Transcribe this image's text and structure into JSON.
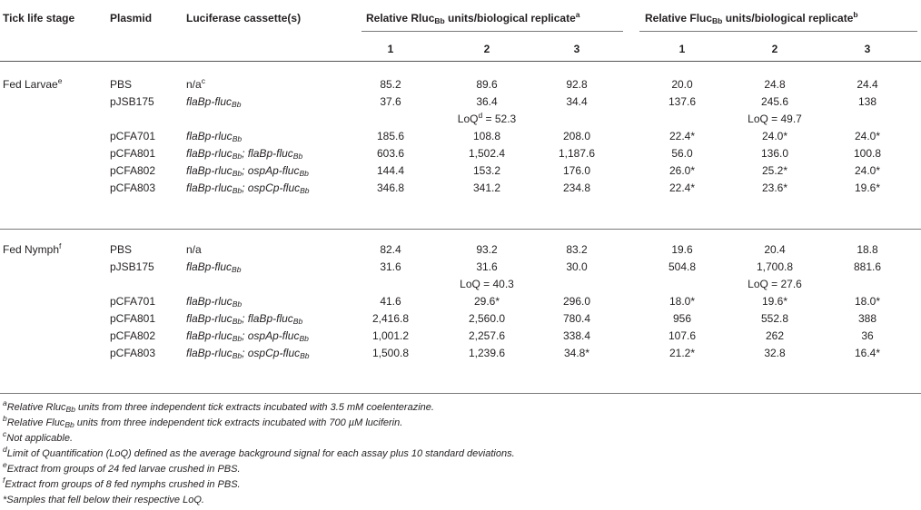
{
  "headers": {
    "stage": "Tick life stage",
    "plasmid": "Plasmid",
    "cassette": "Luciferase cassette(s)",
    "rluc_pre": "Relative Rluc",
    "rluc_sub": "Bb",
    "rluc_post": " units/biological replicate",
    "rluc_sup": "a",
    "fluc_pre": "Relative Fluc",
    "fluc_sub": "Bb",
    "fluc_post": " units/biological replicate",
    "fluc_sup": "b",
    "rep1": "1",
    "rep2": "2",
    "rep3": "3"
  },
  "groups": [
    {
      "stage": "Fed Larvae",
      "stage_sup": "e",
      "rows": [
        {
          "plasmid": "PBS",
          "cassette": "n/a",
          "cassette_sup": "c",
          "r": [
            "85.2",
            "89.6",
            "92.8"
          ],
          "f": [
            "20.0",
            "24.8",
            "24.4"
          ]
        },
        {
          "plasmid": "pJSB175",
          "cassette": "flaBp-flucBb",
          "r": [
            "37.6",
            "36.4",
            "34.4"
          ],
          "f": [
            "137.6",
            "245.6",
            "138"
          ]
        },
        {
          "loq_r": "LoQ",
          "loq_r_sup": "d",
          "loq_r_val": " = 52.3",
          "loq_f": "LoQ = 49.7"
        },
        {
          "plasmid": "pCFA701",
          "cassette": "flaBp-rlucBb",
          "r": [
            "185.6",
            "108.8",
            "208.0"
          ],
          "f": [
            "22.4*",
            "24.0*",
            "24.0*"
          ]
        },
        {
          "plasmid": "pCFA801",
          "cassette": "flaBp-rlucBb; flaBp-flucBb",
          "r": [
            "603.6",
            "1,502.4",
            "1,187.6"
          ],
          "f": [
            "56.0",
            "136.0",
            "100.8"
          ]
        },
        {
          "plasmid": "pCFA802",
          "cassette": "flaBp-rlucBb; ospAp-flucBb",
          "r": [
            "144.4",
            "153.2",
            "176.0"
          ],
          "f": [
            "26.0*",
            "25.2*",
            "24.0*"
          ]
        },
        {
          "plasmid": "pCFA803",
          "cassette": "flaBp-rlucBb; ospCp-flucBb",
          "r": [
            "346.8",
            "341.2",
            "234.8"
          ],
          "f": [
            "22.4*",
            "23.6*",
            "19.6*"
          ]
        }
      ]
    },
    {
      "stage": "Fed Nymph",
      "stage_sup": "f",
      "rows": [
        {
          "plasmid": "PBS",
          "cassette": "n/a",
          "r": [
            "82.4",
            "93.2",
            "83.2"
          ],
          "f": [
            "19.6",
            "20.4",
            "18.8"
          ]
        },
        {
          "plasmid": "pJSB175",
          "cassette": "flaBp-flucBb",
          "r": [
            "31.6",
            "31.6",
            "30.0"
          ],
          "f": [
            "504.8",
            "1,700.8",
            "881.6"
          ]
        },
        {
          "loq_r": "LoQ = 40.3",
          "loq_f": "LoQ = 27.6"
        },
        {
          "plasmid": "pCFA701",
          "cassette": "flaBp-rlucBb",
          "r": [
            "41.6",
            "29.6*",
            "296.0"
          ],
          "f": [
            "18.0*",
            "19.6*",
            "18.0*"
          ]
        },
        {
          "plasmid": "pCFA801",
          "cassette": "flaBp-rlucBb; flaBp-flucBb",
          "r": [
            "2,416.8",
            "2,560.0",
            "780.4"
          ],
          "f": [
            "956",
            "552.8",
            "388"
          ]
        },
        {
          "plasmid": "pCFA802",
          "cassette": "flaBp-rlucBb; ospAp-flucBb",
          "r": [
            "1,001.2",
            "2,257.6",
            "338.4"
          ],
          "f": [
            "107.6",
            "262",
            "36"
          ]
        },
        {
          "plasmid": "pCFA803",
          "cassette": "flaBp-rlucBb; ospCp-flucBb",
          "r": [
            "1,500.8",
            "1,239.6",
            "34.8*"
          ],
          "f": [
            "21.2*",
            "32.8",
            "16.4*"
          ]
        }
      ]
    }
  ],
  "footnotes": {
    "a": "Relative Rluc",
    "a_sub": "Bb",
    "a_rest": " units from three independent tick extracts incubated with 3.5 mM coelenterazine.",
    "b": "Relative Fluc",
    "b_sub": "Bb",
    "b_rest": " units from three independent tick extracts incubated with 700 µM luciferin.",
    "c": "Not applicable.",
    "d": "Limit of Quantification (LoQ) defined as the average background signal for each assay plus 10 standard deviations.",
    "e": "Extract from groups of 24 fed larvae crushed in PBS.",
    "f": "Extract from groups of 8 fed nymphs crushed in PBS.",
    "star": "*Samples that fell below their respective LoQ."
  },
  "footnote_marks": {
    "a": "a",
    "b": "b",
    "c": "c",
    "d": "d",
    "e": "e",
    "f": "f"
  }
}
